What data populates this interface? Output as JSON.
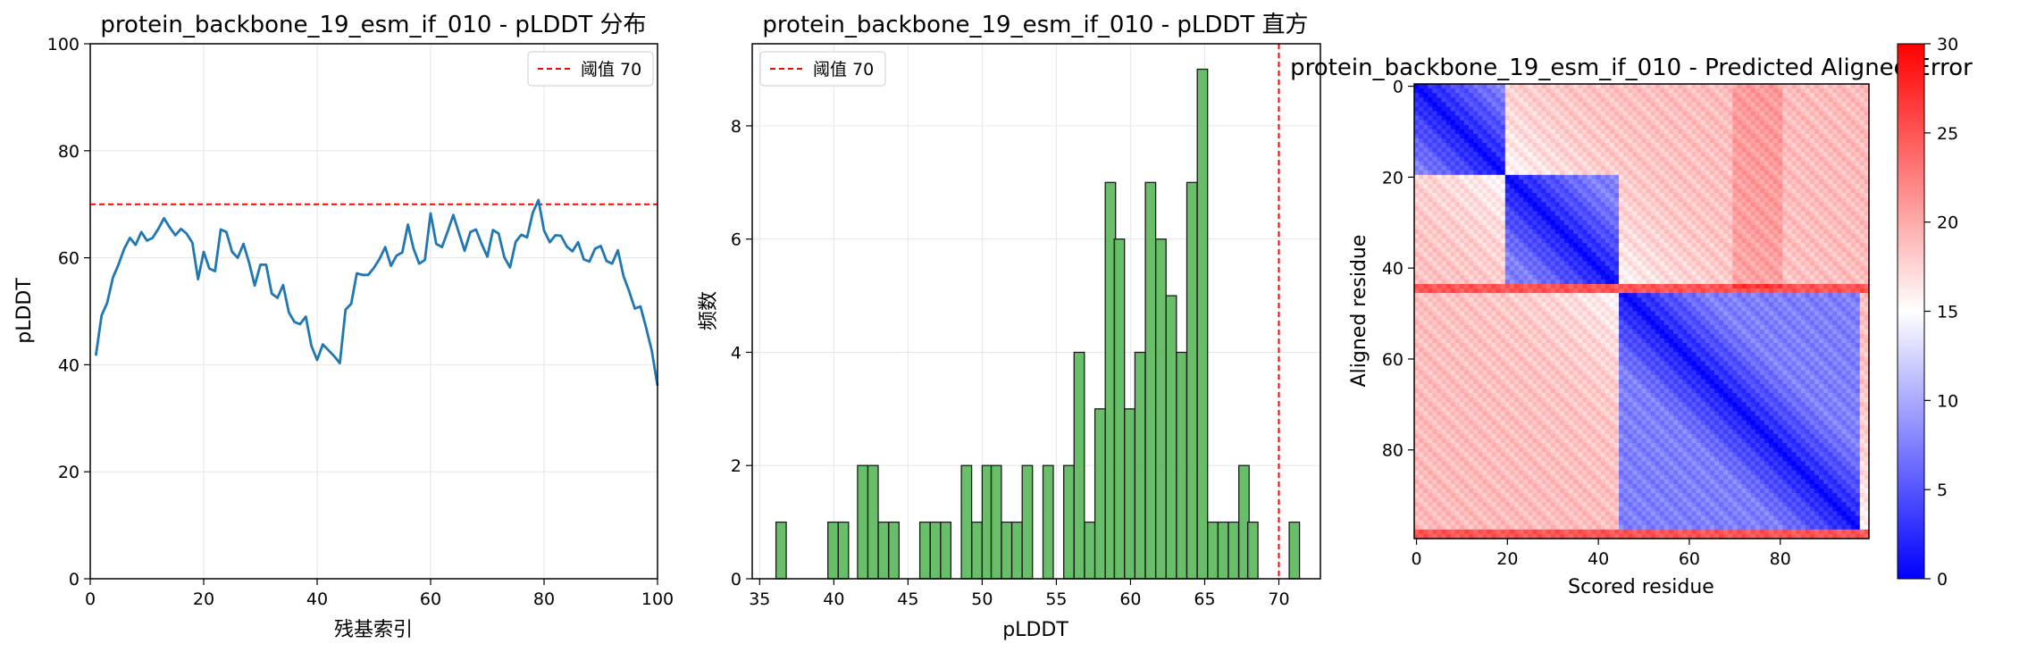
{
  "chart_data": [
    {
      "type": "line",
      "title": "protein_backbone_19_esm_if_010 - pLDDT 分布",
      "xlabel": "残基索引",
      "ylabel": "pLDDT",
      "xlim": [
        0,
        100
      ],
      "ylim": [
        0,
        100
      ],
      "xticks": [
        0,
        20,
        40,
        60,
        80,
        100
      ],
      "yticks": [
        0,
        20,
        40,
        60,
        80,
        100
      ],
      "grid": true,
      "legend_position": "top-right",
      "threshold": {
        "value": 70,
        "label": "阈值 70",
        "color": "#ff0000",
        "style": "dashed"
      },
      "series": [
        {
          "color": "#1f77b4",
          "x": [
            1,
            2,
            3,
            4,
            5,
            6,
            7,
            8,
            9,
            10,
            11,
            12,
            13,
            14,
            15,
            16,
            17,
            18,
            19,
            20,
            21,
            22,
            23,
            24,
            25,
            26,
            27,
            28,
            29,
            30,
            31,
            32,
            33,
            34,
            35,
            36,
            37,
            38,
            39,
            40,
            41,
            42,
            43,
            44,
            45,
            46,
            47,
            48,
            49,
            50,
            51,
            52,
            53,
            54,
            55,
            56,
            57,
            58,
            59,
            60,
            61,
            62,
            63,
            64,
            65,
            66,
            67,
            68,
            69,
            70,
            71,
            72,
            73,
            74,
            75,
            76,
            77,
            78,
            79,
            80,
            81,
            82,
            83,
            84,
            85,
            86,
            87,
            88,
            89,
            90,
            91,
            92,
            93,
            94,
            95,
            96,
            97,
            98,
            99,
            100
          ],
          "values": [
            41.7,
            49.2,
            51.6,
            56.3,
            58.8,
            61.7,
            63.7,
            62.4,
            64.8,
            63.2,
            63.7,
            65.4,
            67.4,
            65.7,
            64.2,
            65.4,
            64.5,
            62.8,
            56.0,
            61.1,
            58.0,
            57.5,
            65.3,
            64.8,
            61.1,
            60.0,
            62.6,
            59.1,
            54.8,
            58.7,
            58.7,
            53.3,
            52.5,
            54.9,
            49.8,
            48.0,
            47.6,
            49.0,
            43.5,
            40.9,
            43.8,
            42.7,
            41.6,
            40.3,
            50.3,
            51.4,
            57.1,
            56.8,
            56.8,
            58.1,
            59.8,
            62.0,
            58.5,
            60.4,
            61.0,
            66.2,
            61.7,
            58.9,
            59.6,
            68.3,
            62.6,
            62.0,
            64.9,
            68.0,
            64.6,
            61.3,
            64.8,
            65.3,
            62.6,
            60.2,
            65.2,
            64.5,
            60.1,
            58.2,
            63.0,
            64.3,
            63.8,
            68.4,
            70.8,
            65.1,
            62.9,
            64.2,
            64.1,
            62.1,
            61.2,
            62.9,
            59.7,
            59.3,
            61.7,
            62.2,
            59.4,
            58.9,
            61.4,
            56.6,
            53.7,
            50.5,
            50.9,
            46.9,
            42.6,
            36.1
          ]
        }
      ]
    },
    {
      "type": "bar",
      "title": "protein_backbone_19_esm_if_010 - pLDDT 直方",
      "xlabel": "pLDDT",
      "ylabel": "频数",
      "xlim": [
        34.5,
        72.8
      ],
      "ylim": [
        0,
        9.45
      ],
      "xticks": [
        35,
        40,
        45,
        50,
        55,
        60,
        65,
        70
      ],
      "yticks": [
        0,
        2,
        4,
        6,
        8
      ],
      "grid": true,
      "legend_position": "top-left",
      "bar_color": "#5cb85c",
      "threshold": {
        "value": 70,
        "label": "阈值 70",
        "color": "#ff0000",
        "style": "dashed"
      },
      "bin_width": 0.69,
      "bin_starts": [
        36.1,
        36.8,
        37.5,
        38.2,
        38.9,
        39.6,
        40.3,
        41.0,
        41.6,
        42.3,
        43.0,
        43.7,
        44.4,
        45.1,
        45.8,
        46.5,
        47.2,
        47.9,
        48.6,
        49.3,
        50.0,
        50.6,
        51.3,
        52.0,
        52.7,
        53.4,
        54.1,
        54.8,
        55.5,
        56.2,
        56.9,
        57.6,
        58.3,
        58.9,
        59.6,
        60.3,
        61.0,
        61.7,
        62.4,
        63.1,
        63.8,
        64.5,
        65.2,
        65.9,
        66.6,
        67.3,
        67.9,
        68.6,
        69.3,
        70.0,
        70.7
      ],
      "values": [
        1,
        0,
        0,
        0,
        0,
        1,
        1,
        0,
        2,
        2,
        1,
        1,
        0,
        0,
        1,
        1,
        1,
        0,
        2,
        1,
        2,
        2,
        1,
        1,
        2,
        0,
        2,
        0,
        2,
        4,
        1,
        3,
        7,
        6,
        3,
        4,
        7,
        6,
        5,
        4,
        7,
        9,
        1,
        1,
        1,
        2,
        1,
        0,
        0,
        0,
        1
      ]
    },
    {
      "type": "heatmap",
      "title": "protein_backbone_19_esm_if_010 - Predicted Aligned Error",
      "xlabel": "Scored residue",
      "ylabel": "Aligned residue",
      "rows": 100,
      "cols": 100,
      "xticks": [
        0,
        20,
        40,
        60,
        80
      ],
      "yticks": [
        0,
        20,
        40,
        60,
        80
      ],
      "colormap": "bwr",
      "colorbar": {
        "min": 0,
        "max": 30,
        "ticks": [
          0,
          5,
          10,
          15,
          20,
          25,
          30
        ]
      },
      "domain_breaks": [
        20,
        45,
        98
      ],
      "high_error_bands": [
        44,
        45,
        98,
        99
      ],
      "high_error_col_range": [
        70,
        80
      ],
      "diagonal_value": 0,
      "intra_domain_value": 6,
      "inter_domain_value": 19,
      "band_value": 25
    }
  ]
}
